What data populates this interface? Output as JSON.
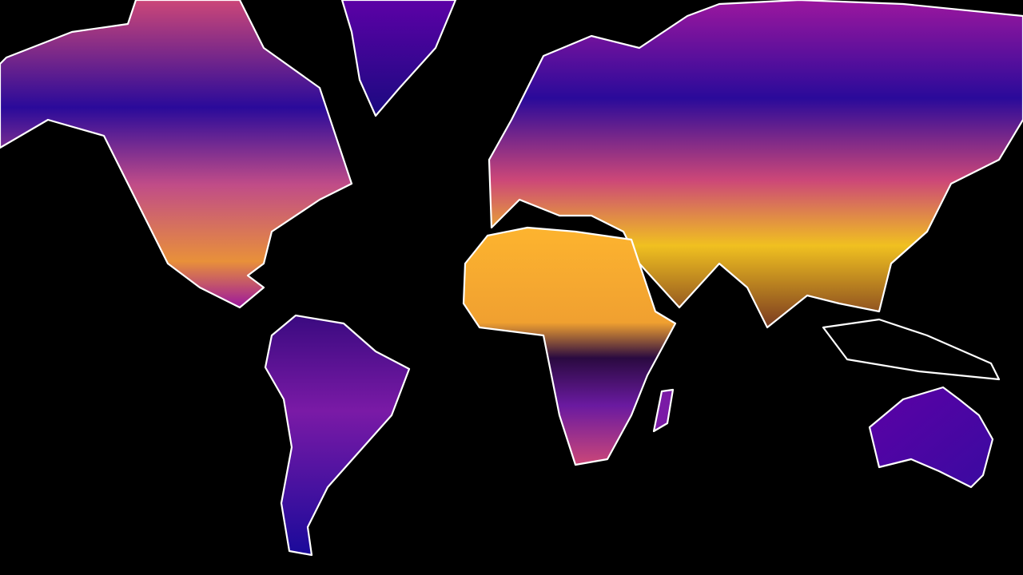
{
  "map": {
    "projection": "mercator",
    "background": "#000000",
    "coastline_color": "#ffffff",
    "colormap": [
      "#0d0887",
      "#5c01a6",
      "#9c179e",
      "#cc4778",
      "#ed7953",
      "#fdb42f",
      "#f0f921"
    ]
  }
}
